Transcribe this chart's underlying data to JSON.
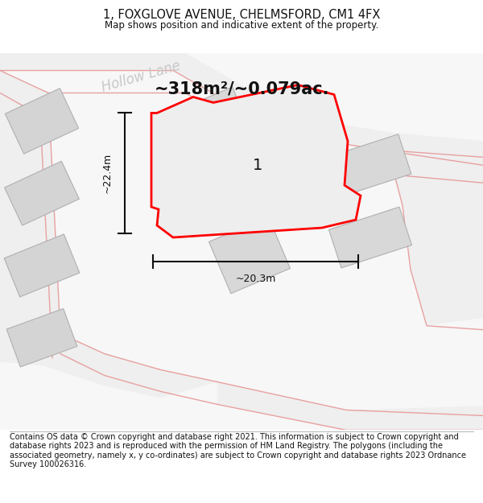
{
  "title": "1, FOXGLOVE AVENUE, CHELMSFORD, CM1 4FX",
  "subtitle": "Map shows position and indicative extent of the property.",
  "footer": "Contains OS data © Crown copyright and database right 2021. This information is subject to Crown copyright and database rights 2023 and is reproduced with the permission of HM Land Registry. The polygons (including the associated geometry, namely x, y co-ordinates) are subject to Crown copyright and database rights 2023 Ordnance Survey 100026316.",
  "area_label": "~318m²/~0.079ac.",
  "width_label": "~20.3m",
  "height_label": "~22.4m",
  "plot_label": "1",
  "background_color": "#ffffff",
  "plot_fill": "#eeeeee",
  "plot_edge": "#ff0000",
  "building_color": "#d4d4d4",
  "building_edge": "#b0b0b0",
  "road_fill": "#f2f2f2",
  "road_line_color": "#e8a0a0",
  "dim_line_color": "#111111",
  "street_label": "Hollow Lane",
  "street_label_color": "#c8c8c8",
  "title_fontsize": 10.5,
  "subtitle_fontsize": 8.5,
  "footer_fontsize": 7.0,
  "area_fontsize": 15,
  "plot_num_fontsize": 14
}
